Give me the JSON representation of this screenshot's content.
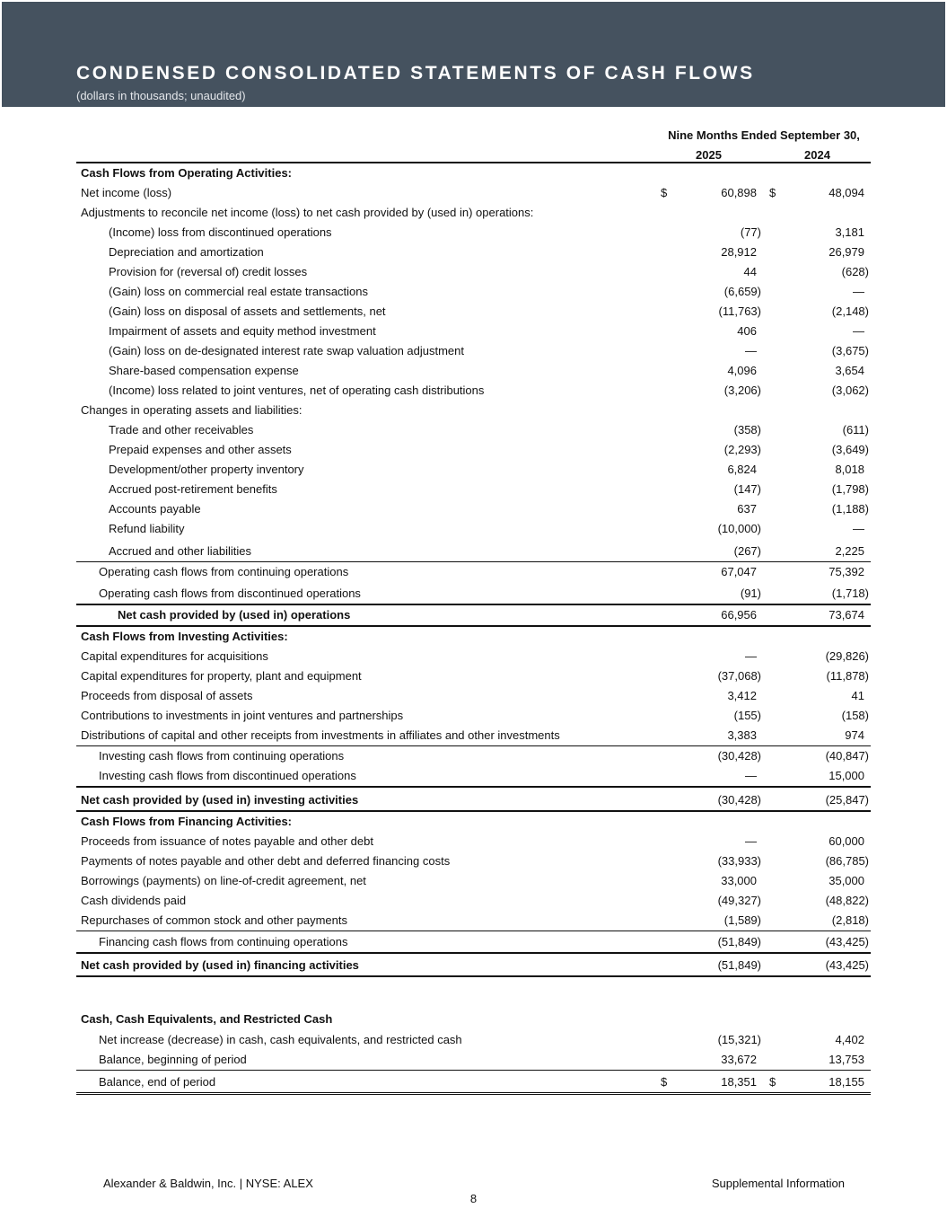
{
  "header": {
    "title": "CONDENSED CONSOLIDATED STATEMENTS OF CASH FLOWS",
    "subtitle": "(dollars in thousands; unaudited)",
    "band_color": "#45525f"
  },
  "columns": {
    "period": "Nine Months Ended September 30,",
    "years": [
      "2025",
      "2024"
    ]
  },
  "rows": [
    {
      "label": "Cash Flows from Operating Activities:",
      "bold": true
    },
    {
      "label": "Net income (loss)",
      "dollar": "$",
      "v2025": "60,898",
      "v2024": "48,094"
    },
    {
      "label": "Adjustments to reconcile net income (loss) to net cash provided by (used in) operations:"
    },
    {
      "label": "(Income) loss from discontinued operations",
      "indent": 2,
      "v2025": "(77)",
      "v2024": "3,181"
    },
    {
      "label": "Depreciation and amortization",
      "indent": 2,
      "v2025": "28,912",
      "v2024": "26,979"
    },
    {
      "label": "Provision for (reversal of) credit losses",
      "indent": 2,
      "v2025": "44",
      "v2024": "(628)"
    },
    {
      "label": "(Gain) loss on commercial real estate transactions",
      "indent": 2,
      "v2025": "(6,659)",
      "v2024": "—"
    },
    {
      "label": "(Gain) loss on disposal of assets and settlements, net",
      "indent": 2,
      "v2025": "(11,763)",
      "v2024": "(2,148)"
    },
    {
      "label": "Impairment of assets and equity method investment",
      "indent": 2,
      "v2025": "406",
      "v2024": "—"
    },
    {
      "label": "(Gain) loss on de-designated interest rate swap valuation adjustment",
      "indent": 2,
      "v2025": "—",
      "v2024": "(3,675)"
    },
    {
      "label": "Share-based compensation expense",
      "indent": 2,
      "v2025": "4,096",
      "v2024": "3,654"
    },
    {
      "label": "(Income) loss related to joint ventures, net of operating cash distributions",
      "indent": 2,
      "v2025": "(3,206)",
      "v2024": "(3,062)"
    },
    {
      "label": "Changes in operating assets and liabilities:"
    },
    {
      "label": "Trade and other receivables",
      "indent": 2,
      "v2025": "(358)",
      "v2024": "(611)"
    },
    {
      "label": "Prepaid expenses and other assets",
      "indent": 2,
      "v2025": "(2,293)",
      "v2024": "(3,649)"
    },
    {
      "label": "Development/other property inventory",
      "indent": 2,
      "v2025": "6,824",
      "v2024": "8,018"
    },
    {
      "label": "Accrued post-retirement benefits",
      "indent": 2,
      "v2025": "(147)",
      "v2024": "(1,798)"
    },
    {
      "label": "Accounts payable",
      "indent": 2,
      "v2025": "637",
      "v2024": "(1,188)"
    },
    {
      "label": "Refund liability",
      "indent": 2,
      "v2025": "(10,000)",
      "v2024": "—"
    },
    {
      "label": "Accrued and other liabilities",
      "indent": 2,
      "v2025": "(267)",
      "v2024": "2,225",
      "rule": "single"
    },
    {
      "label": "Operating cash flows from continuing operations",
      "indent": 1,
      "v2025": "67,047",
      "v2024": "75,392"
    },
    {
      "label": "Operating cash flows from discontinued operations",
      "indent": 1,
      "v2025": "(91)",
      "v2024": "(1,718)",
      "rule": "heavy"
    },
    {
      "label": "Net cash provided by (used in) operations",
      "indent": 3,
      "bold": true,
      "v2025": "66,956",
      "v2024": "73,674",
      "rule": "heavy"
    },
    {
      "label": "Cash Flows from Investing Activities:",
      "bold": true
    },
    {
      "label": "Capital expenditures for acquisitions",
      "v2025": "—",
      "v2024": "(29,826)"
    },
    {
      "label": "Capital expenditures for property, plant and equipment",
      "v2025": "(37,068)",
      "v2024": "(11,878)"
    },
    {
      "label": "Proceeds from disposal of assets",
      "v2025": "3,412",
      "v2024": "41"
    },
    {
      "label": "Contributions to investments in joint ventures and partnerships",
      "v2025": "(155)",
      "v2024": "(158)"
    },
    {
      "label": "Distributions of capital and other receipts from investments in affiliates and other investments",
      "v2025": "3,383",
      "v2024": "974",
      "rule": "single"
    },
    {
      "label": "Investing cash flows from continuing operations",
      "indent": 1,
      "v2025": "(30,428)",
      "v2024": "(40,847)"
    },
    {
      "label": "Investing cash flows from discontinued operations",
      "indent": 1,
      "v2025": "—",
      "v2024": "15,000",
      "rule": "heavy"
    },
    {
      "label": "Net cash provided by (used in) investing activities",
      "bold": true,
      "v2025": "(30,428)",
      "v2024": "(25,847)",
      "rule": "heavy"
    },
    {
      "label": "Cash Flows from Financing Activities:",
      "bold": true
    },
    {
      "label": "Proceeds from issuance of notes payable and other debt",
      "v2025": "—",
      "v2024": "60,000"
    },
    {
      "label": "Payments of notes payable and other debt and deferred financing costs",
      "v2025": "(33,933)",
      "v2024": "(86,785)"
    },
    {
      "label": "Borrowings (payments) on line-of-credit agreement, net",
      "v2025": "33,000",
      "v2024": "35,000"
    },
    {
      "label": "Cash dividends paid",
      "v2025": "(49,327)",
      "v2024": "(48,822)"
    },
    {
      "label": "Repurchases of common stock and other payments",
      "v2025": "(1,589)",
      "v2024": "(2,818)",
      "rule": "single"
    },
    {
      "label": "Financing cash flows from continuing operations",
      "indent": 1,
      "v2025": "(51,849)",
      "v2024": "(43,425)",
      "rule": "heavy"
    },
    {
      "label": "Net cash provided by (used in) financing activities",
      "bold": true,
      "v2025": "(51,849)",
      "v2024": "(43,425)",
      "rule": "heavy"
    },
    {
      "label": ""
    },
    {
      "label": "Cash, Cash Equivalents, and Restricted Cash",
      "bold": true,
      "indent": 0
    },
    {
      "label": "Net increase (decrease) in cash, cash equivalents, and restricted cash",
      "indent": 1,
      "v2025": "(15,321)",
      "v2024": "4,402"
    },
    {
      "label": "Balance, beginning of period",
      "indent": 1,
      "v2025": "33,672",
      "v2024": "13,753",
      "rule": "single"
    },
    {
      "label": "Balance, end of period",
      "indent": 1,
      "dollar": "$",
      "v2025": "18,351",
      "v2024": "18,155",
      "rule": "double"
    }
  ],
  "footer": {
    "left": "Alexander & Baldwin, Inc. | NYSE: ALEX",
    "right": "Supplemental Information",
    "page": "8"
  }
}
